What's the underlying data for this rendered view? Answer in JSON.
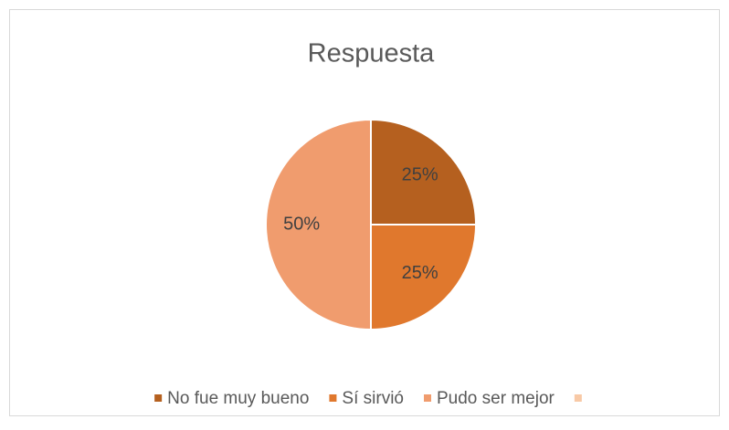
{
  "chart_data": {
    "type": "pie",
    "title": "Respuesta",
    "categories": [
      "No fue muy bueno",
      "Sí sirvió",
      "Pudo ser mejor",
      null
    ],
    "values": [
      25,
      25,
      50,
      0
    ],
    "value_labels": [
      "25%",
      "25%",
      "50%",
      null
    ],
    "colors": [
      "#b5601f",
      "#e0782d",
      "#f09c6e",
      "#f8c9a6"
    ],
    "legend": "bottom"
  }
}
